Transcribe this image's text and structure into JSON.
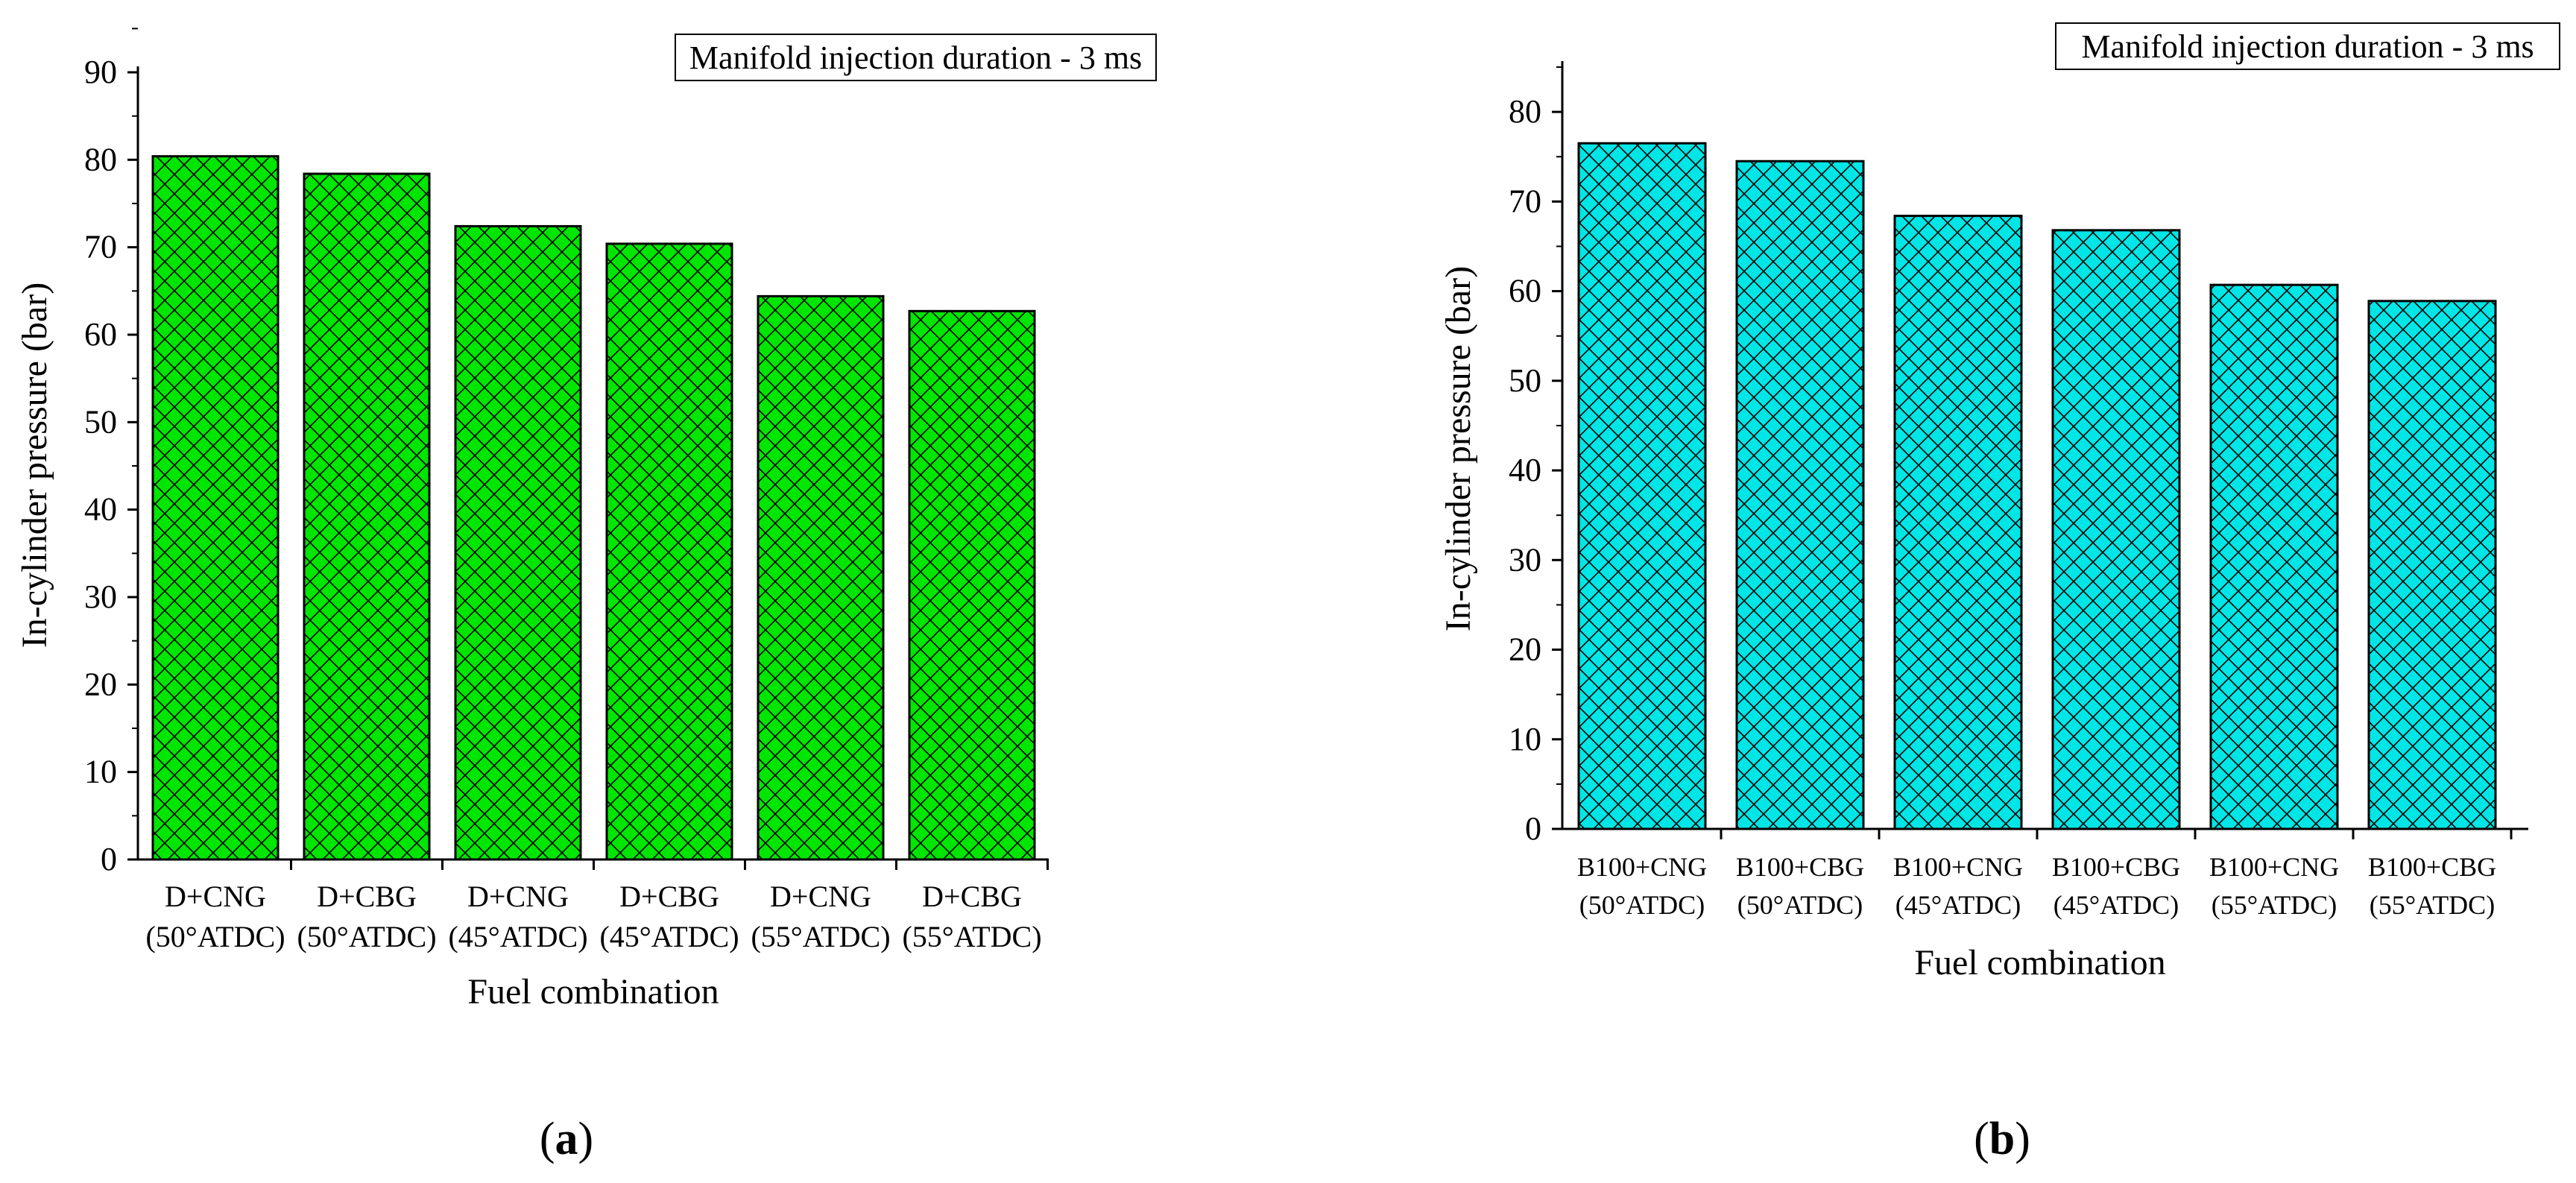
{
  "chart_data": [
    {
      "type": "bar",
      "panel_label": "a",
      "bar_color": "#00e600",
      "hatch": "crosshatch",
      "annotation": "Manifold injection duration - 3 ms",
      "xlabel": "Fuel combination",
      "ylabel": "In-cylinder pressure (bar)",
      "ylim": [
        0,
        90
      ],
      "ytick_step": 10,
      "categories": [
        [
          "D+CNG",
          "(50°ATDC)"
        ],
        [
          "D+CBG",
          "(50°ATDC)"
        ],
        [
          "D+CNG",
          "(45°ATDC)"
        ],
        [
          "D+CBG",
          "(45°ATDC)"
        ],
        [
          "D+CNG",
          "(55°ATDC)"
        ],
        [
          "D+CBG",
          "(55°ATDC)"
        ]
      ],
      "values": [
        80.4,
        78.4,
        72.4,
        70.4,
        64.4,
        62.7
      ]
    },
    {
      "type": "bar",
      "panel_label": "b",
      "bar_color": "#00e6e6",
      "hatch": "crosshatch",
      "annotation": "Manifold injection duration - 3 ms",
      "xlabel": "Fuel combination",
      "ylabel": "In-cylinder pressure (bar)",
      "ylim": [
        0,
        85
      ],
      "ytick_step": 10,
      "categories": [
        [
          "B100+CNG",
          "(50°ATDC)"
        ],
        [
          "B100+CBG",
          "(50°ATDC)"
        ],
        [
          "B100+CNG",
          "(45°ATDC)"
        ],
        [
          "B100+CBG",
          "(45°ATDC)"
        ],
        [
          "B100+CNG",
          "(55°ATDC)"
        ],
        [
          "B100+CBG",
          "(55°ATDC)"
        ]
      ],
      "values": [
        76.5,
        74.5,
        68.4,
        66.8,
        60.7,
        58.9
      ]
    }
  ]
}
